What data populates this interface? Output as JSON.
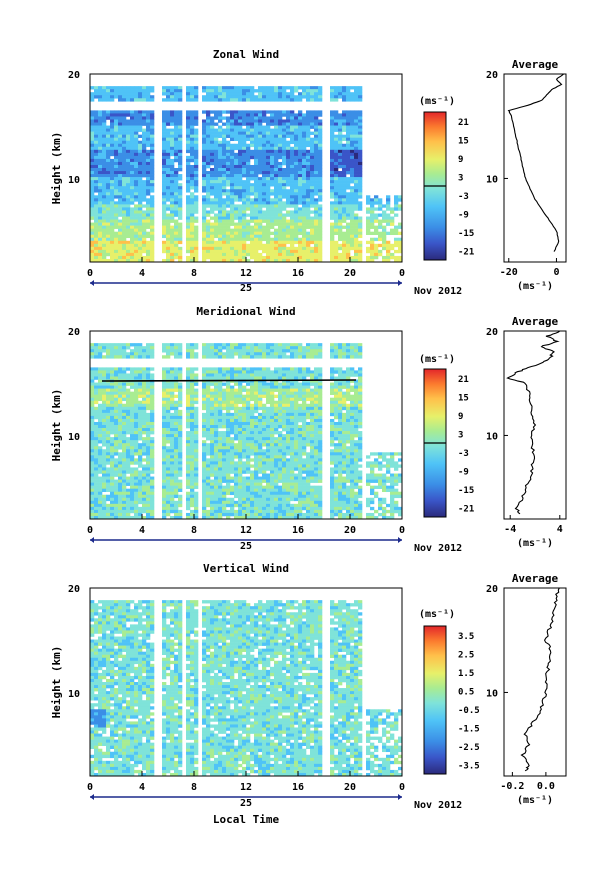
{
  "chart_data": [
    {
      "type": "heatmap",
      "title": "Zonal Wind",
      "ylabel": "Height (km)",
      "ylim": [
        2,
        20
      ],
      "y_ticks": [
        "20",
        "10"
      ],
      "x_ticks": [
        "0",
        "4",
        "8",
        "12",
        "16",
        "20",
        "0"
      ],
      "day_label": "25",
      "date_label": "Nov 2012",
      "colorbar": {
        "unit": "(ms⁻¹)",
        "ticks": [
          "21",
          "15",
          "9",
          "3",
          "-3",
          "-9",
          "-15",
          "-21"
        ],
        "range": [
          -24,
          24
        ]
      },
      "average": {
        "title": "Average",
        "xlim": [
          -22,
          4
        ],
        "x_ticks": [
          "-20",
          "0"
        ],
        "xlabel": "(ms⁻¹)",
        "heights": [
          3,
          4,
          5,
          6,
          7,
          8,
          9,
          10,
          11,
          12,
          13,
          14,
          15,
          16,
          16.5,
          17,
          17.5,
          18,
          18.5,
          19,
          19.5,
          20
        ],
        "values": [
          -1,
          1,
          0,
          -3,
          -6,
          -9,
          -11,
          -13,
          -14,
          -15,
          -16,
          -17,
          -18,
          -19,
          -20,
          -12,
          -6,
          -4,
          -2,
          2,
          0,
          3
        ]
      }
    },
    {
      "type": "heatmap",
      "title": "Meridional Wind",
      "ylabel": "Height (km)",
      "ylim": [
        2,
        20
      ],
      "y_ticks": [
        "20",
        "10"
      ],
      "x_ticks": [
        "0",
        "4",
        "8",
        "12",
        "16",
        "20",
        "0"
      ],
      "day_label": "25",
      "date_label": "Nov 2012",
      "colorbar": {
        "unit": "(ms⁻¹)",
        "ticks": [
          "21",
          "15",
          "9",
          "3",
          "-3",
          "-9",
          "-15",
          "-21"
        ],
        "range": [
          -24,
          24
        ]
      },
      "average": {
        "title": "Average",
        "xlim": [
          -5,
          5
        ],
        "x_ticks": [
          "-4",
          "4"
        ],
        "xlabel": "(ms⁻¹)",
        "heights": [
          2.5,
          3,
          4,
          5,
          6,
          7,
          8,
          9,
          10,
          11,
          12,
          13,
          14,
          15,
          15.5,
          16,
          16.5,
          17,
          17.5,
          18,
          18.5,
          19,
          19.5,
          20
        ],
        "values": [
          -2.5,
          -3,
          -2,
          -1.5,
          -0.5,
          -0.5,
          0,
          -0.5,
          -0.5,
          0,
          -0.5,
          -0.5,
          -1,
          -1.5,
          -4.5,
          -3,
          -1,
          1.5,
          2.5,
          3,
          1,
          3.5,
          2,
          4
        ]
      }
    },
    {
      "type": "heatmap",
      "title": "Vertical Wind",
      "ylabel": "Height (km)",
      "xlabel": "Local Time",
      "ylim": [
        2,
        20
      ],
      "y_ticks": [
        "20",
        "10"
      ],
      "x_ticks": [
        "0",
        "4",
        "8",
        "12",
        "16",
        "20",
        "0"
      ],
      "day_label": "25",
      "date_label": "Nov 2012",
      "colorbar": {
        "unit": "(ms⁻¹)",
        "ticks": [
          "3.5",
          "2.5",
          "1.5",
          "0.5",
          "-0.5",
          "-1.5",
          "-2.5",
          "-3.5"
        ],
        "range": [
          -4,
          4
        ]
      },
      "average": {
        "title": "Average",
        "xlim": [
          -0.25,
          0.12
        ],
        "x_ticks": [
          "-0.2",
          "0.0"
        ],
        "xlabel": "(ms⁻¹)",
        "heights": [
          2.5,
          3,
          4,
          5,
          6,
          7,
          8,
          9,
          10,
          11,
          12,
          13,
          14,
          15,
          16,
          17,
          18,
          19,
          20
        ],
        "values": [
          -0.12,
          -0.1,
          -0.14,
          -0.1,
          -0.12,
          -0.08,
          -0.04,
          -0.02,
          0.0,
          0.0,
          0.01,
          0.02,
          0.03,
          0.0,
          0.02,
          0.04,
          0.05,
          0.06,
          0.08
        ]
      }
    }
  ],
  "colors": {
    "scale": [
      "#2b2a7c",
      "#3a55c8",
      "#3b8ee6",
      "#4fc3f7",
      "#7fe3d9",
      "#a8ec92",
      "#e7f06a",
      "#ffc04a",
      "#fb7a2e",
      "#e3262a"
    ]
  }
}
